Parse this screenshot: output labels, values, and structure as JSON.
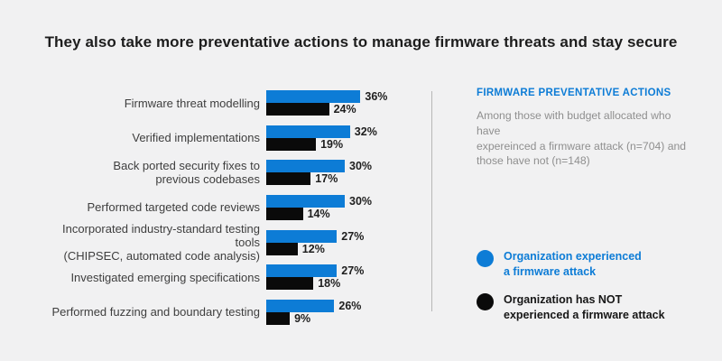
{
  "title": "They also take more preventative actions to manage firmware threats and stay secure",
  "colors": {
    "background": "#f1f1f2",
    "blue": "#0d7cd6",
    "black": "#0a0a0a",
    "title_text": "#1d1d1d",
    "category_text": "#3e3e3e",
    "value_text": "#1e1e1e",
    "note_text": "#8f8f8f",
    "divider": "#b7b7b7"
  },
  "chart_data": {
    "type": "bar",
    "orientation": "horizontal",
    "categories": [
      "Firmware threat modelling",
      "Verified implementations",
      "Back ported security fixes to previous codebases",
      "Performed targeted code reviews",
      "Incorporated industry-standard testing tools (CHIPSEC, automated code analysis)",
      "Investigated emerging specifications",
      "Performed fuzzing and boundary testing"
    ],
    "category_lines": [
      [
        "Firmware threat modelling"
      ],
      [
        "Verified implementations"
      ],
      [
        "Back ported security fixes to",
        "previous codebases"
      ],
      [
        "Performed targeted code reviews"
      ],
      [
        "Incorporated industry-standard testing tools",
        "(CHIPSEC, automated code analysis)"
      ],
      [
        "Investigated emerging specifications"
      ],
      [
        "Performed fuzzing and boundary testing"
      ]
    ],
    "series": [
      {
        "name": "Organization experienced a firmware attack",
        "color": "#0d7cd6",
        "values": [
          36,
          32,
          30,
          30,
          27,
          27,
          26
        ]
      },
      {
        "name": "Organization has NOT experienced a firmware attack",
        "color": "#0a0a0a",
        "values": [
          24,
          19,
          17,
          14,
          12,
          18,
          9
        ]
      }
    ],
    "unit": "%",
    "xlim": [
      0,
      40
    ],
    "grid": false,
    "legend_position": "right",
    "value_labels": true
  },
  "side_panel": {
    "heading": "FIRMWARE PREVENTATIVE ACTIONS",
    "note_lines": [
      "Among those with budget allocated who have",
      "expereinced a firmware attack (n=704) and",
      "those have not (n=148)"
    ],
    "legend": [
      {
        "lines": [
          "Organization experienced",
          "a firmware attack"
        ],
        "color": "#0d7cd6",
        "text_color": "#0d7cd6"
      },
      {
        "lines": [
          "Organization has NOT",
          "experienced a firmware attack"
        ],
        "color": "#0a0a0a",
        "text_color": "#161616"
      }
    ]
  }
}
